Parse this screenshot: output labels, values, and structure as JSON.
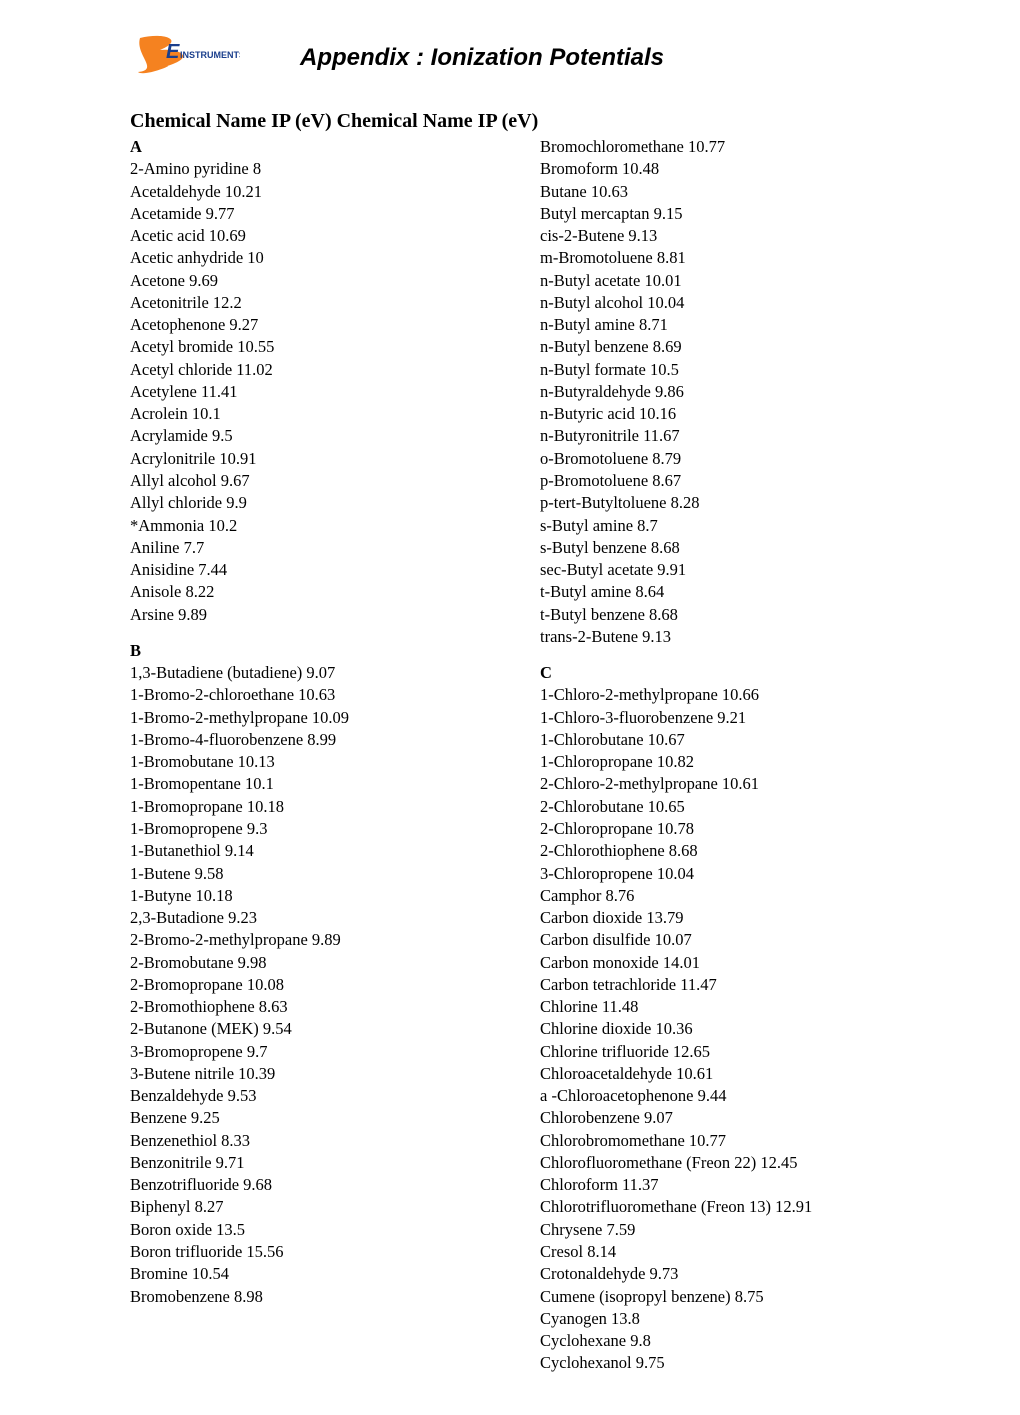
{
  "title": "Appendix : Ionization Potentials",
  "heading": "Chemical Name IP (eV) Chemical Name IP (eV)",
  "logo": {
    "brand_text": "E",
    "brand_sub": "INSTRUMENTS",
    "colors": {
      "orange": "#f58220",
      "blue": "#1a3e8c"
    }
  },
  "left_sections": [
    {
      "letter": "A",
      "entries": [
        "2-Amino pyridine 8",
        "Acetaldehyde 10.21",
        "Acetamide 9.77",
        "Acetic acid 10.69",
        "Acetic anhydride 10",
        "Acetone 9.69",
        "Acetonitrile 12.2",
        "Acetophenone 9.27",
        "Acetyl bromide 10.55",
        "Acetyl chloride 11.02",
        "Acetylene 11.41",
        "Acrolein 10.1",
        "Acrylamide 9.5",
        "Acrylonitrile 10.91",
        "Allyl alcohol 9.67",
        "Allyl chloride 9.9",
        "*Ammonia 10.2",
        "Aniline 7.7",
        "Anisidine 7.44",
        "Anisole 8.22",
        "Arsine 9.89"
      ]
    },
    {
      "letter": "B",
      "entries": [
        "1,3-Butadiene (butadiene) 9.07",
        "1-Bromo-2-chloroethane 10.63",
        "1-Bromo-2-methylpropane 10.09",
        "1-Bromo-4-fluorobenzene 8.99",
        "1-Bromobutane 10.13",
        "1-Bromopentane 10.1",
        "1-Bromopropane 10.18",
        "1-Bromopropene 9.3",
        "1-Butanethiol 9.14",
        "1-Butene 9.58",
        "1-Butyne 10.18",
        "2,3-Butadione 9.23",
        "2-Bromo-2-methylpropane 9.89",
        "2-Bromobutane 9.98",
        "2-Bromopropane 10.08",
        "2-Bromothiophene 8.63",
        "2-Butanone (MEK) 9.54",
        "3-Bromopropene 9.7",
        "3-Butene nitrile 10.39",
        "Benzaldehyde 9.53",
        "Benzene 9.25",
        "Benzenethiol 8.33",
        "Benzonitrile 9.71",
        "Benzotrifluoride 9.68",
        "Biphenyl 8.27",
        "Boron oxide 13.5",
        "Boron trifluoride 15.56",
        "Bromine 10.54",
        "Bromobenzene 8.98"
      ]
    }
  ],
  "right_sections": [
    {
      "letter": "",
      "entries": [
        "Bromochloromethane 10.77",
        "Bromoform 10.48",
        "Butane 10.63",
        "Butyl mercaptan 9.15",
        "cis-2-Butene 9.13",
        "m-Bromotoluene 8.81",
        "n-Butyl acetate 10.01",
        "n-Butyl alcohol 10.04",
        "n-Butyl amine 8.71",
        "n-Butyl benzene 8.69",
        "n-Butyl formate 10.5",
        "n-Butyraldehyde 9.86",
        "n-Butyric acid 10.16",
        "n-Butyronitrile 11.67",
        "o-Bromotoluene 8.79",
        "p-Bromotoluene 8.67",
        "p-tert-Butyltoluene 8.28",
        "s-Butyl amine 8.7",
        "s-Butyl benzene 8.68",
        "sec-Butyl acetate 9.91",
        "t-Butyl amine 8.64",
        "t-Butyl benzene 8.68",
        "trans-2-Butene 9.13"
      ]
    },
    {
      "letter": "C",
      "entries": [
        "1-Chloro-2-methylpropane 10.66",
        "1-Chloro-3-fluorobenzene 9.21",
        "1-Chlorobutane 10.67",
        "1-Chloropropane 10.82",
        "2-Chloro-2-methylpropane 10.61",
        "2-Chlorobutane 10.65",
        "2-Chloropropane 10.78",
        "2-Chlorothiophene 8.68",
        "3-Chloropropene 10.04",
        "Camphor 8.76",
        "Carbon dioxide 13.79",
        "Carbon disulfide 10.07",
        "Carbon monoxide 14.01",
        "Carbon tetrachloride 11.47",
        "Chlorine 11.48",
        "Chlorine dioxide 10.36",
        "Chlorine trifluoride 12.65",
        "Chloroacetaldehyde 10.61",
        "a -Chloroacetophenone 9.44",
        "Chlorobenzene 9.07",
        "Chlorobromomethane 10.77",
        "Chlorofluoromethane (Freon 22) 12.45",
        "Chloroform 11.37",
        "Chlorotrifluoromethane (Freon 13) 12.91",
        "Chrysene 7.59",
        "Cresol 8.14",
        "Crotonaldehyde 9.73",
        "Cumene (isopropyl benzene) 8.75",
        "Cyanogen 13.8",
        "Cyclohexane 9.8",
        "Cyclohexanol 9.75"
      ]
    }
  ]
}
